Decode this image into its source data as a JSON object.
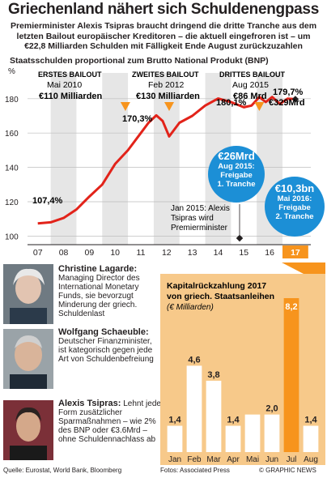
{
  "header": {
    "title": "Griechenland nähert sich Schuldenengpass",
    "subtitle": "Premierminister Alexis Tsipras braucht dringend die dritte Tranche aus dem letzten Bailout europäischer Kreditoren – die aktuell eingefroren ist – um €22,8 Milliarden Schulden mit Fälligkeit Ende August zurückzuzahlen"
  },
  "main_chart": {
    "title": "Staatsschulden proportional zum Brutto National Produkt (BNP)",
    "unit": "%",
    "y_ticks": [
      "100",
      "120",
      "140",
      "160",
      "180"
    ],
    "x_labels": [
      "07",
      "08",
      "09",
      "10",
      "11",
      "12",
      "13",
      "14",
      "15",
      "16",
      "17"
    ],
    "labels": {
      "start": "107,4%",
      "peak": "170,3%",
      "mid": "180,1%",
      "end": "179,7%",
      "end_sub": "€329Mrd"
    },
    "bailouts": [
      {
        "name": "ERSTES BAILOUT",
        "date": "Mai 2010",
        "amount": "€110 Milliarden"
      },
      {
        "name": "ZWEITES BAILOUT",
        "date": "Feb 2012",
        "amount": "€130 Milliarden"
      },
      {
        "name": "DRITTES BAILOUT",
        "date": "Aug 2015",
        "amount": "€86 Mrd"
      }
    ],
    "note": {
      "line1": "Jan 2015: Alexis",
      "line2": "Tsipras wird",
      "line3": "Premierminister"
    },
    "callouts": [
      {
        "amount": "€26Mrd",
        "line1": "Aug 2015:",
        "line2": "Freigabe",
        "line3": "1. Tranche"
      },
      {
        "amount": "€10,3bn",
        "line1": "Mai 2016:",
        "line2": "Freigabe",
        "line3": "2. Tranche"
      }
    ],
    "colors": {
      "line": "#e2231a",
      "band": "#e6e6e6",
      "arrow": "#f7941d",
      "callout": "#1c8fd6",
      "highlight": "#f7941d"
    }
  },
  "chart_data": [
    {
      "type": "line",
      "title": "Staatsschulden proportional zum Brutto National Produkt (BNP)",
      "ylabel": "%",
      "x": [
        2007.0,
        2007.5,
        2008.0,
        2008.5,
        2009.0,
        2009.5,
        2010.0,
        2010.5,
        2011.0,
        2011.3,
        2011.6,
        2011.85,
        2012.1,
        2012.5,
        2013.0,
        2013.5,
        2014.0,
        2014.5,
        2015.0,
        2015.3,
        2015.6,
        2015.85,
        2016.1,
        2016.4,
        2016.7,
        2017.0
      ],
      "values": [
        107.4,
        108.0,
        110.5,
        115.5,
        123.0,
        130.0,
        142.0,
        150.0,
        160.0,
        166.0,
        170.3,
        167.0,
        158.0,
        166.0,
        170.0,
        176.0,
        180.1,
        178.0,
        175.0,
        176.0,
        181.0,
        178.0,
        181.0,
        177.0,
        180.0,
        179.7
      ],
      "ylim": [
        95,
        195
      ],
      "xlim": [
        2006.6,
        2017.6
      ]
    },
    {
      "type": "bar",
      "title": "Kapitalrückzahlung 2017 von griech. Staatsanleihen",
      "ylabel": "(€ Milliarden)",
      "categories": [
        "Jan",
        "Feb",
        "Mar",
        "Apr",
        "Mai",
        "Jun",
        "Jul",
        "Aug"
      ],
      "values": [
        1.4,
        4.6,
        3.8,
        1.4,
        2.0,
        2.0,
        8.2,
        1.4
      ],
      "value_labels": [
        "1,4",
        "4,6",
        "3,8",
        "1,4",
        "",
        "2,0",
        "8,2",
        "1,4"
      ],
      "ylim": [
        0,
        8.2
      ]
    }
  ],
  "people": [
    {
      "name": "Christine Lagarde:",
      "text": "Managing Director des International Monetary Funds, sie bevorzugt Minderung der griech. Schuldenlast"
    },
    {
      "name": "Wolfgang Schaeuble:",
      "text": "Deutscher Finanzminister, ist kategorisch gegen jede Art von Schuldenbefreiung"
    },
    {
      "name": "Alexis Tsipras:",
      "text": "Lehnt jede Form zusätzlicher Sparmaßnahmen – wie 2% des BNP oder €3.6Mrd – ohne Schuldennachlass ab"
    }
  ],
  "footer": {
    "source": "Quelle: Eurostat, World Bank, Bloomberg",
    "photos": "Fotos: Associated Press",
    "credit": "© GRAPHIC NEWS"
  }
}
